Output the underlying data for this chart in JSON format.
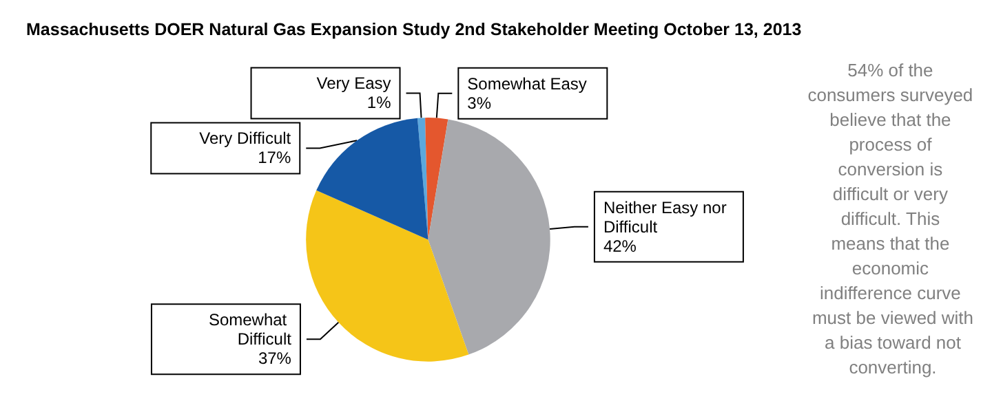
{
  "chart_data": {
    "type": "pie",
    "title": "Massachusetts DOER Natural Gas Expansion Study 2nd Stakeholder Meeting October 13, 2013",
    "categories": [
      "Very Easy",
      "Somewhat Easy",
      "Neither Easy nor Difficult",
      "Somewhat Difficult",
      "Very Difficult"
    ],
    "values": [
      1,
      3,
      42,
      37,
      17
    ],
    "value_labels": [
      "1%",
      "3%",
      "42%",
      "37%",
      "17%"
    ],
    "colors": [
      "#5ba8dd",
      "#e4572e",
      "#a8a9ad",
      "#f5c518",
      "#1659a6"
    ],
    "annotations": [
      "54% of the consumers surveyed believe that the process of conversion is difficult or very difficult. This means that the economic indifference curve must be viewed with a bias toward not converting."
    ],
    "legend": false
  }
}
